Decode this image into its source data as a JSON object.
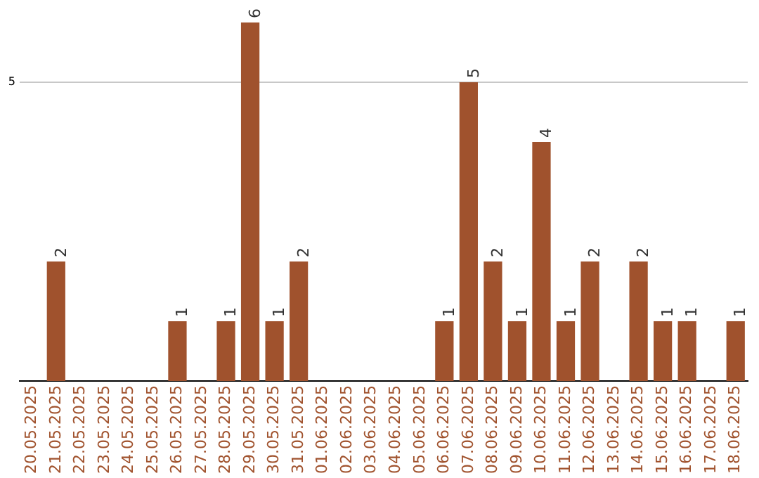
{
  "chart_data": {
    "type": "bar",
    "categories": [
      "20.05.2025",
      "21.05.2025",
      "22.05.2025",
      "23.05.2025",
      "24.05.2025",
      "25.05.2025",
      "26.05.2025",
      "27.05.2025",
      "28.05.2025",
      "29.05.2025",
      "30.05.2025",
      "31.05.2025",
      "01.06.2025",
      "02.06.2025",
      "03.06.2025",
      "04.06.2025",
      "05.06.2025",
      "06.06.2025",
      "07.06.2025",
      "08.06.2025",
      "09.06.2025",
      "10.06.2025",
      "11.06.2025",
      "12.06.2025",
      "13.06.2025",
      "14.06.2025",
      "15.06.2025",
      "16.06.2025",
      "17.06.2025",
      "18.06.2025"
    ],
    "values": [
      0,
      2,
      0,
      0,
      0,
      0,
      1,
      0,
      1,
      6,
      1,
      2,
      0,
      0,
      0,
      0,
      0,
      1,
      5,
      2,
      1,
      4,
      1,
      2,
      0,
      2,
      1,
      1,
      0,
      1
    ],
    "value_labels": [
      null,
      "2",
      null,
      null,
      null,
      null,
      "1",
      null,
      "1",
      "6",
      "1",
      "2",
      null,
      null,
      null,
      null,
      null,
      "1",
      "5",
      "2",
      "1",
      "4",
      "1",
      "2",
      null,
      "2",
      "1",
      "1",
      null,
      "1"
    ],
    "color": "#a0522d",
    "ref_lines": [
      {
        "axis": "y",
        "value": 5,
        "label": "5",
        "color": "#c8c8c8"
      }
    ],
    "legend": false
  }
}
